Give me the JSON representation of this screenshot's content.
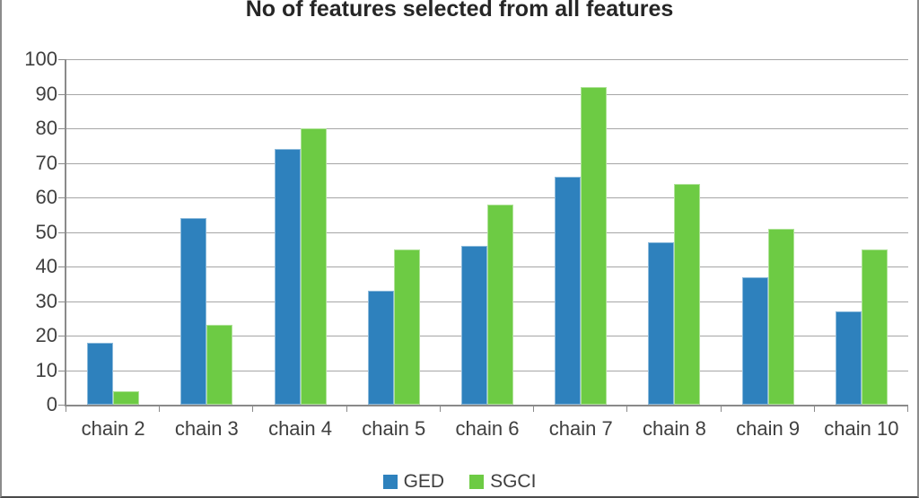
{
  "chart_data": {
    "type": "bar",
    "title": "No of features selected from all features",
    "categories": [
      "chain 2",
      "chain 3",
      "chain 4",
      "chain 5",
      "chain 6",
      "chain 7",
      "chain 8",
      "chain 9",
      "chain 10"
    ],
    "series": [
      {
        "name": "GED",
        "color": "#2E81BD",
        "values": [
          18,
          54,
          74,
          33,
          46,
          66,
          47,
          37,
          27
        ]
      },
      {
        "name": "SGCI",
        "color": "#6DCB44",
        "values": [
          4,
          23,
          80,
          45,
          58,
          92,
          64,
          51,
          45
        ]
      }
    ],
    "xlabel": "",
    "ylabel": "",
    "ylim": [
      0,
      100
    ],
    "yticks": [
      0,
      10,
      20,
      30,
      40,
      50,
      60,
      70,
      80,
      90,
      100
    ],
    "grid": true,
    "legend_position": "bottom"
  },
  "frame": {
    "background": "#FFFFFF",
    "border_color": "#8C8C8C",
    "grid_color": "#A6A6A6",
    "axis_color": "#8A8A8A",
    "text_color": "#3F3F3F",
    "title_color": "#262626"
  }
}
